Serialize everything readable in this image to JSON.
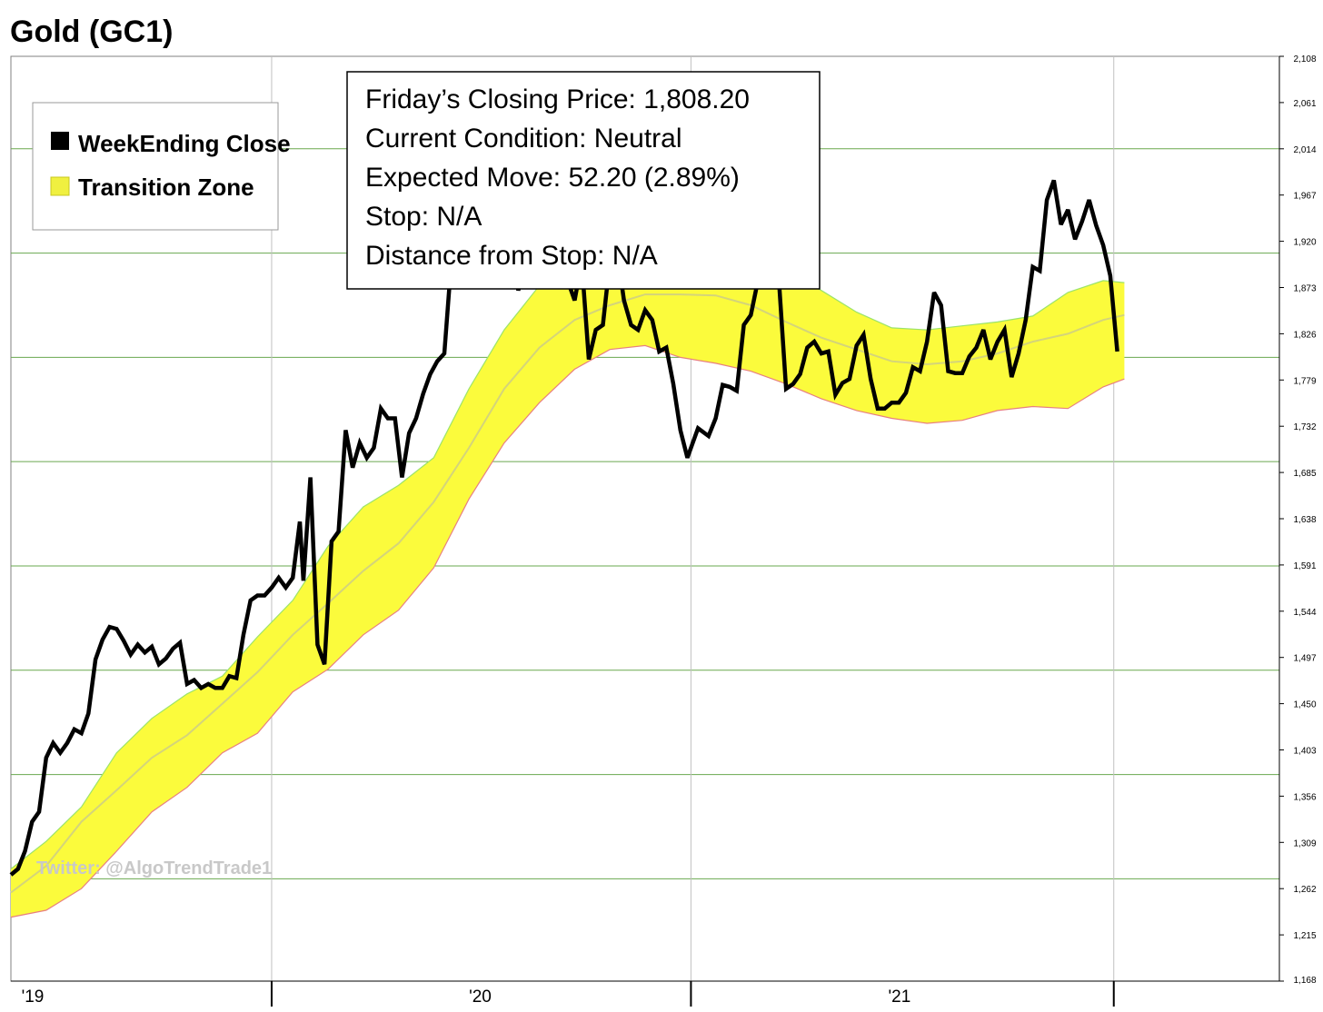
{
  "title": "Gold (GC1)",
  "legend": [
    {
      "label": "WeekEnding Close",
      "color": "#000000"
    },
    {
      "label": "Transition Zone",
      "color": "#f0f040"
    }
  ],
  "info_box": [
    "Friday’s Closing Price: 1,808.20",
    "Current Condition: Neutral",
    "Expected Move: 52.20 (2.89%)",
    "Stop: N/A",
    "Distance from Stop: N/A"
  ],
  "watermark": "Twitter: @AlgoTrendTrade1",
  "colors": {
    "close_line": "#000000",
    "zone_fill": "#fbfb3c",
    "zone_upper_edge": "#9be36a",
    "zone_lower_edge": "#e88080",
    "zone_mid": "#d4d47a",
    "grid_horizontal": "#6aa84f",
    "grid_vertical": "#c0c0c0"
  },
  "chart_data": {
    "type": "line",
    "title": "Gold (GC1)",
    "x_tick_labels": [
      "'19",
      "'20",
      "'21"
    ],
    "x_separators": [
      7.4,
      19.3,
      31.3
    ],
    "y_ticks": [
      "2,108",
      "2,061",
      "2,014",
      "1,967",
      "1,920",
      "1,873",
      "1,826",
      "1,779",
      "1,732",
      "1,685",
      "1,638",
      "1,591",
      "1,544",
      "1,497",
      "1,450",
      "1,403",
      "1,356",
      "1,309",
      "1,262",
      "1,215",
      "1,168"
    ],
    "y_tick_values": [
      2108,
      2061,
      2014,
      1967,
      1920,
      1873,
      1826,
      1779,
      1732,
      1685,
      1638,
      1591,
      1544,
      1497,
      1450,
      1403,
      1356,
      1309,
      1262,
      1215,
      1168
    ],
    "ylim": [
      1168,
      2108
    ],
    "xlim": [
      0,
      36
    ],
    "grid_horizontal_values": [
      2014,
      1908,
      1802,
      1696,
      1590,
      1484,
      1378,
      1272
    ],
    "series": [
      {
        "name": "WeekEnding Close",
        "points": [
          [
            0,
            1276
          ],
          [
            0.2,
            1282
          ],
          [
            0.4,
            1300
          ],
          [
            0.6,
            1330
          ],
          [
            0.8,
            1340
          ],
          [
            1.0,
            1395
          ],
          [
            1.2,
            1410
          ],
          [
            1.4,
            1400
          ],
          [
            1.6,
            1410
          ],
          [
            1.8,
            1424
          ],
          [
            2.0,
            1420
          ],
          [
            2.2,
            1440
          ],
          [
            2.4,
            1495
          ],
          [
            2.6,
            1515
          ],
          [
            2.8,
            1528
          ],
          [
            3.0,
            1526
          ],
          [
            3.2,
            1514
          ],
          [
            3.4,
            1500
          ],
          [
            3.6,
            1510
          ],
          [
            3.8,
            1502
          ],
          [
            4.0,
            1508
          ],
          [
            4.2,
            1490
          ],
          [
            4.4,
            1496
          ],
          [
            4.6,
            1506
          ],
          [
            4.8,
            1512
          ],
          [
            5.0,
            1470
          ],
          [
            5.2,
            1474
          ],
          [
            5.4,
            1466
          ],
          [
            5.6,
            1470
          ],
          [
            5.8,
            1466
          ],
          [
            6.0,
            1466
          ],
          [
            6.2,
            1478
          ],
          [
            6.4,
            1476
          ],
          [
            6.6,
            1520
          ],
          [
            6.8,
            1555
          ],
          [
            7.0,
            1560
          ],
          [
            7.2,
            1560
          ],
          [
            7.4,
            1568
          ],
          [
            7.6,
            1578
          ],
          [
            7.8,
            1568
          ],
          [
            8.0,
            1578
          ],
          [
            8.2,
            1635
          ],
          [
            8.3,
            1575
          ],
          [
            8.5,
            1680
          ],
          [
            8.7,
            1510
          ],
          [
            8.9,
            1490
          ],
          [
            9.1,
            1615
          ],
          [
            9.3,
            1625
          ],
          [
            9.5,
            1728
          ],
          [
            9.7,
            1690
          ],
          [
            9.9,
            1715
          ],
          [
            10.1,
            1700
          ],
          [
            10.3,
            1710
          ],
          [
            10.5,
            1750
          ],
          [
            10.7,
            1740
          ],
          [
            10.9,
            1740
          ],
          [
            11.1,
            1680
          ],
          [
            11.3,
            1725
          ],
          [
            11.5,
            1740
          ],
          [
            11.7,
            1765
          ],
          [
            11.9,
            1785
          ],
          [
            12.1,
            1798
          ],
          [
            12.3,
            1806
          ],
          [
            12.5,
            1900
          ],
          [
            12.8,
            1950
          ],
          [
            13.3,
            1990
          ],
          [
            14.0,
            1990
          ],
          [
            14.4,
            1870
          ],
          [
            14.6,
            1900
          ],
          [
            14.8,
            1880
          ],
          [
            15.1,
            1920
          ],
          [
            15.4,
            1900
          ],
          [
            15.8,
            1880
          ],
          [
            16.0,
            1860
          ],
          [
            16.2,
            1899
          ],
          [
            16.4,
            1800
          ],
          [
            16.6,
            1830
          ],
          [
            16.8,
            1835
          ],
          [
            17.0,
            1900
          ],
          [
            17.2,
            1910
          ],
          [
            17.4,
            1860
          ],
          [
            17.6,
            1835
          ],
          [
            17.8,
            1830
          ],
          [
            18.0,
            1850
          ],
          [
            18.2,
            1840
          ],
          [
            18.4,
            1808
          ],
          [
            18.6,
            1812
          ],
          [
            18.8,
            1775
          ],
          [
            19.0,
            1728
          ],
          [
            19.2,
            1700
          ],
          [
            19.5,
            1730
          ],
          [
            19.8,
            1722
          ],
          [
            20.0,
            1740
          ],
          [
            20.2,
            1774
          ],
          [
            20.4,
            1772
          ],
          [
            20.6,
            1768
          ],
          [
            20.8,
            1835
          ],
          [
            21.0,
            1845
          ],
          [
            21.2,
            1880
          ],
          [
            21.4,
            1898
          ],
          [
            21.6,
            1888
          ],
          [
            21.8,
            1878
          ],
          [
            22.0,
            1770
          ],
          [
            22.2,
            1775
          ],
          [
            22.4,
            1785
          ],
          [
            22.6,
            1812
          ],
          [
            22.8,
            1818
          ],
          [
            23.0,
            1806
          ],
          [
            23.2,
            1808
          ],
          [
            23.4,
            1764
          ],
          [
            23.6,
            1776
          ],
          [
            23.8,
            1780
          ],
          [
            24.0,
            1814
          ],
          [
            24.2,
            1825
          ],
          [
            24.4,
            1780
          ],
          [
            24.6,
            1750
          ],
          [
            24.8,
            1750
          ],
          [
            25.0,
            1756
          ],
          [
            25.2,
            1756
          ],
          [
            25.4,
            1766
          ],
          [
            25.6,
            1792
          ],
          [
            25.8,
            1788
          ],
          [
            26.0,
            1818
          ],
          [
            26.2,
            1868
          ],
          [
            26.4,
            1855
          ],
          [
            26.6,
            1788
          ],
          [
            26.8,
            1786
          ],
          [
            27.0,
            1786
          ],
          [
            27.2,
            1803
          ],
          [
            27.4,
            1812
          ],
          [
            27.6,
            1830
          ],
          [
            27.8,
            1800
          ],
          [
            28.0,
            1818
          ],
          [
            28.2,
            1830
          ],
          [
            28.4,
            1782
          ],
          [
            28.6,
            1806
          ],
          [
            28.8,
            1840
          ],
          [
            29.0,
            1894
          ],
          [
            29.2,
            1890
          ],
          [
            29.4,
            1962
          ],
          [
            29.6,
            1982
          ],
          [
            29.8,
            1937
          ],
          [
            30.0,
            1952
          ],
          [
            30.2,
            1922
          ],
          [
            30.4,
            1940
          ],
          [
            30.6,
            1962
          ],
          [
            30.8,
            1936
          ],
          [
            31.0,
            1916
          ],
          [
            31.2,
            1885
          ],
          [
            31.4,
            1808
          ]
        ]
      },
      {
        "name": "Transition Zone",
        "upper": [
          [
            0,
            1282
          ],
          [
            1,
            1310
          ],
          [
            2,
            1345
          ],
          [
            3,
            1400
          ],
          [
            4,
            1435
          ],
          [
            5,
            1460
          ],
          [
            6,
            1478
          ],
          [
            7,
            1518
          ],
          [
            8,
            1555
          ],
          [
            9,
            1610
          ],
          [
            10,
            1650
          ],
          [
            11,
            1672
          ],
          [
            12,
            1700
          ],
          [
            13,
            1770
          ],
          [
            14,
            1830
          ],
          [
            15,
            1875
          ],
          [
            16,
            1900
          ],
          [
            17,
            1908
          ],
          [
            18,
            1910
          ],
          [
            19,
            1912
          ],
          [
            20,
            1912
          ],
          [
            21,
            1904
          ],
          [
            22,
            1890
          ],
          [
            23,
            1870
          ],
          [
            24,
            1848
          ],
          [
            25,
            1832
          ],
          [
            26,
            1830
          ],
          [
            27,
            1834
          ],
          [
            28,
            1838
          ],
          [
            29,
            1844
          ],
          [
            30,
            1868
          ],
          [
            31,
            1880
          ],
          [
            31.6,
            1878
          ]
        ],
        "mid": [
          [
            0,
            1258
          ],
          [
            1,
            1285
          ],
          [
            2,
            1330
          ],
          [
            3,
            1362
          ],
          [
            4,
            1395
          ],
          [
            5,
            1418
          ],
          [
            6,
            1450
          ],
          [
            7,
            1482
          ],
          [
            8,
            1520
          ],
          [
            9,
            1552
          ],
          [
            10,
            1585
          ],
          [
            11,
            1613
          ],
          [
            12,
            1655
          ],
          [
            13,
            1710
          ],
          [
            14,
            1770
          ],
          [
            15,
            1812
          ],
          [
            16,
            1840
          ],
          [
            17,
            1855
          ],
          [
            18,
            1866
          ],
          [
            19,
            1866
          ],
          [
            20,
            1865
          ],
          [
            21,
            1855
          ],
          [
            22,
            1838
          ],
          [
            23,
            1822
          ],
          [
            24,
            1810
          ],
          [
            25,
            1798
          ],
          [
            26,
            1795
          ],
          [
            27,
            1798
          ],
          [
            28,
            1806
          ],
          [
            29,
            1818
          ],
          [
            30,
            1826
          ],
          [
            31,
            1840
          ],
          [
            31.6,
            1845
          ]
        ],
        "lower": [
          [
            0,
            1233
          ],
          [
            1,
            1240
          ],
          [
            2,
            1262
          ],
          [
            3,
            1300
          ],
          [
            4,
            1340
          ],
          [
            5,
            1365
          ],
          [
            6,
            1400
          ],
          [
            7,
            1420
          ],
          [
            8,
            1462
          ],
          [
            9,
            1485
          ],
          [
            10,
            1520
          ],
          [
            11,
            1545
          ],
          [
            12,
            1588
          ],
          [
            13,
            1658
          ],
          [
            14,
            1715
          ],
          [
            15,
            1756
          ],
          [
            16,
            1790
          ],
          [
            17,
            1810
          ],
          [
            18,
            1814
          ],
          [
            19,
            1802
          ],
          [
            20,
            1796
          ],
          [
            21,
            1788
          ],
          [
            22,
            1775
          ],
          [
            23,
            1760
          ],
          [
            24,
            1748
          ],
          [
            25,
            1740
          ],
          [
            26,
            1735
          ],
          [
            27,
            1738
          ],
          [
            28,
            1748
          ],
          [
            29,
            1752
          ],
          [
            30,
            1750
          ],
          [
            31,
            1772
          ],
          [
            31.6,
            1780
          ]
        ]
      }
    ]
  }
}
